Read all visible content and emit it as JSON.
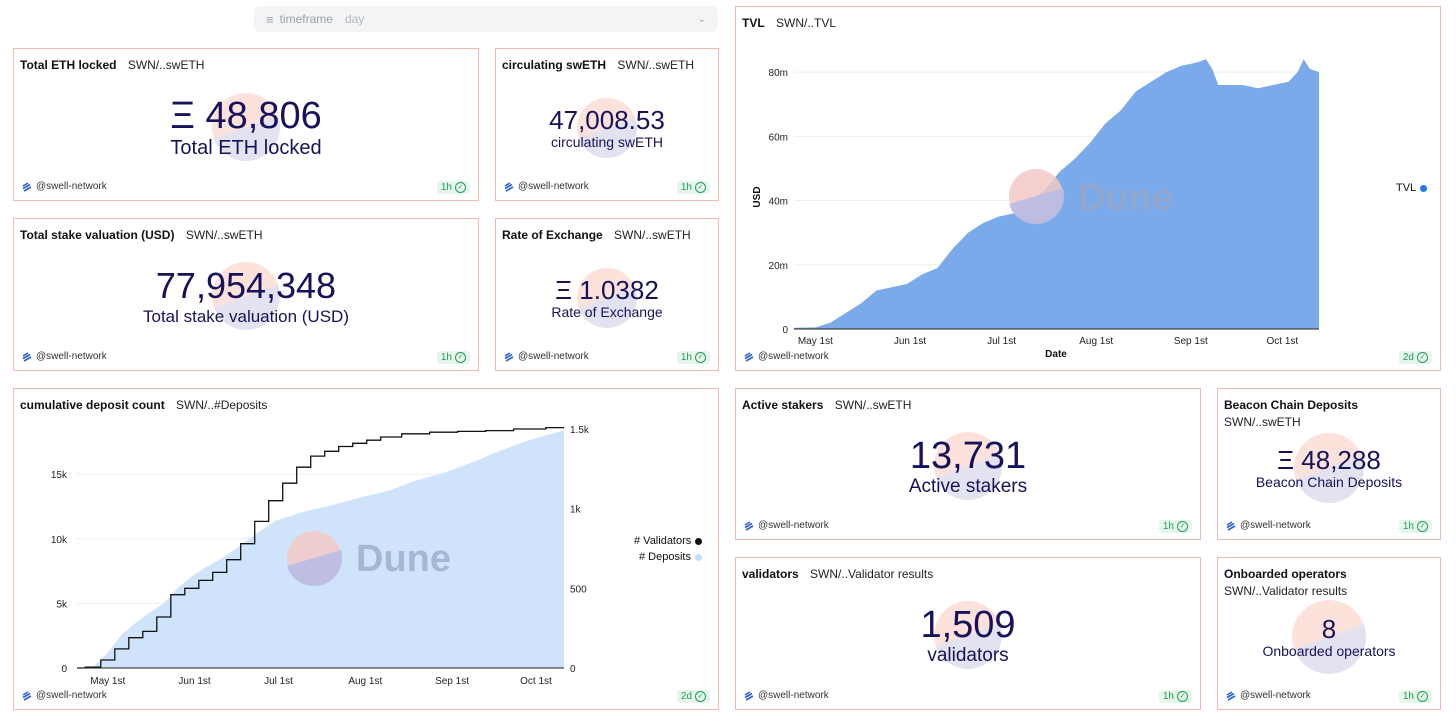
{
  "timeframe": {
    "label": "timeframe",
    "value": "day"
  },
  "cards": {
    "total_eth": {
      "title": "Total ETH locked",
      "query": "SWN/..swETH",
      "value": "Ξ 48,806",
      "label": "Total ETH locked",
      "author": "@swell-network",
      "age": "1h"
    },
    "circulating": {
      "title": "circulating swETH",
      "query": "SWN/..swETH",
      "value": "47,008.53",
      "label": "circulating swETH",
      "author": "@swell-network",
      "age": "1h"
    },
    "stake_val": {
      "title": "Total stake valuation (USD)",
      "query": "SWN/..swETH",
      "value": "77,954,348",
      "label": "Total stake valuation (USD)",
      "author": "@swell-network",
      "age": "1h"
    },
    "rate": {
      "title": "Rate of Exchange",
      "query": "SWN/..swETH",
      "value": "Ξ 1.0382",
      "label": "Rate of Exchange",
      "author": "@swell-network",
      "age": "1h"
    },
    "tvl": {
      "title": "TVL",
      "query": "SWN/..TVL",
      "author": "@swell-network",
      "age": "2d",
      "watermark": "Dune"
    },
    "deposits": {
      "title": "cumulative deposit count",
      "query": "SWN/..#Deposits",
      "author": "@swell-network",
      "age": "2d",
      "watermark": "Dune"
    },
    "stakers": {
      "title": "Active stakers",
      "query": "SWN/..swETH",
      "value": "13,731",
      "label": "Active stakers",
      "author": "@swell-network",
      "age": "1h"
    },
    "beacon": {
      "title": "Beacon Chain Deposits",
      "query": "SWN/..swETH",
      "value": "Ξ 48,288",
      "label": "Beacon Chain Deposits",
      "author": "@swell-network",
      "age": "1h"
    },
    "validators": {
      "title": "validators",
      "query": "SWN/..Validator results",
      "value": "1,509",
      "label": "validators",
      "author": "@swell-network",
      "age": "1h"
    },
    "operators": {
      "title": "Onboarded operators",
      "query": "SWN/..Validator results",
      "value": "8",
      "label": "Onboarded operators",
      "author": "@swell-network",
      "age": "1h"
    }
  },
  "chart_data": [
    {
      "type": "area",
      "title": "TVL",
      "xlabel": "Date",
      "ylabel": "USD",
      "x_ticks": [
        "May 1st",
        "Jun 1st",
        "Jul 1st",
        "Aug 1st",
        "Sep 1st",
        "Oct 1st"
      ],
      "y_ticks": [
        "0",
        "20m",
        "40m",
        "60m",
        "80m"
      ],
      "ylim": [
        0,
        90000000
      ],
      "xlim": [
        -7,
        165
      ],
      "legend_position": "right",
      "series": [
        {
          "name": "TVL",
          "color": "#7aaaea",
          "points": [
            [
              -7,
              0.4
            ],
            [
              0,
              0.5
            ],
            [
              5,
              2
            ],
            [
              10,
              5
            ],
            [
              15,
              8
            ],
            [
              20,
              12
            ],
            [
              25,
              13
            ],
            [
              30,
              14
            ],
            [
              35,
              17
            ],
            [
              40,
              19
            ],
            [
              45,
              25
            ],
            [
              50,
              30
            ],
            [
              55,
              33
            ],
            [
              60,
              35
            ],
            [
              65,
              36
            ],
            [
              70,
              40
            ],
            [
              75,
              43
            ],
            [
              80,
              49
            ],
            [
              85,
              53
            ],
            [
              90,
              58
            ],
            [
              95,
              64
            ],
            [
              100,
              68
            ],
            [
              105,
              74
            ],
            [
              110,
              77
            ],
            [
              115,
              80
            ],
            [
              120,
              82
            ],
            [
              125,
              83
            ],
            [
              128,
              84
            ],
            [
              130,
              81
            ],
            [
              132,
              76
            ],
            [
              135,
              76
            ],
            [
              140,
              76
            ],
            [
              145,
              75
            ],
            [
              150,
              76
            ],
            [
              155,
              77
            ],
            [
              158,
              80
            ],
            [
              160,
              84
            ],
            [
              162,
              81
            ],
            [
              165,
              80
            ]
          ]
        }
      ]
    },
    {
      "type": "line+area",
      "title": "cumulative deposit count",
      "x_ticks": [
        "May 1st",
        "Jun 1st",
        "Jul 1st",
        "Aug 1st",
        "Sep 1st",
        "Oct 1st"
      ],
      "y_left_ticks": [
        "0",
        "5k",
        "10k",
        "15k"
      ],
      "y_right_ticks": [
        "0",
        "500",
        "1k",
        "1.5k"
      ],
      "ylim_left": [
        0,
        18500
      ],
      "ylim_right": [
        0,
        1500
      ],
      "xlim": [
        -11,
        163
      ],
      "legend_position": "right",
      "series": [
        {
          "name": "# Validators",
          "axis": "right",
          "color": "#111111",
          "points": [
            [
              -11,
              0
            ],
            [
              -5,
              5
            ],
            [
              0,
              50
            ],
            [
              5,
              120
            ],
            [
              10,
              190
            ],
            [
              15,
              230
            ],
            [
              20,
              320
            ],
            [
              25,
              460
            ],
            [
              30,
              500
            ],
            [
              35,
              550
            ],
            [
              40,
              600
            ],
            [
              45,
              680
            ],
            [
              50,
              780
            ],
            [
              55,
              920
            ],
            [
              60,
              1050
            ],
            [
              65,
              1160
            ],
            [
              70,
              1260
            ],
            [
              75,
              1330
            ],
            [
              80,
              1360
            ],
            [
              85,
              1390
            ],
            [
              90,
              1410
            ],
            [
              95,
              1430
            ],
            [
              100,
              1450
            ],
            [
              110,
              1470
            ],
            [
              120,
              1480
            ],
            [
              130,
              1485
            ],
            [
              140,
              1490
            ],
            [
              150,
              1500
            ],
            [
              163,
              1509
            ]
          ]
        },
        {
          "name": "# Deposits",
          "axis": "left",
          "color": "#cfe4fb",
          "points": [
            [
              -11,
              0
            ],
            [
              -5,
              100
            ],
            [
              0,
              1200
            ],
            [
              5,
              2600
            ],
            [
              10,
              3500
            ],
            [
              15,
              4300
            ],
            [
              20,
              5000
            ],
            [
              25,
              6200
            ],
            [
              30,
              7100
            ],
            [
              35,
              7800
            ],
            [
              40,
              8400
            ],
            [
              45,
              9100
            ],
            [
              50,
              9900
            ],
            [
              55,
              10700
            ],
            [
              60,
              11400
            ],
            [
              70,
              12100
            ],
            [
              80,
              12600
            ],
            [
              90,
              13200
            ],
            [
              100,
              13700
            ],
            [
              110,
              14500
            ],
            [
              120,
              15100
            ],
            [
              130,
              15900
            ],
            [
              140,
              16800
            ],
            [
              150,
              17600
            ],
            [
              163,
              18400
            ]
          ]
        }
      ]
    }
  ]
}
